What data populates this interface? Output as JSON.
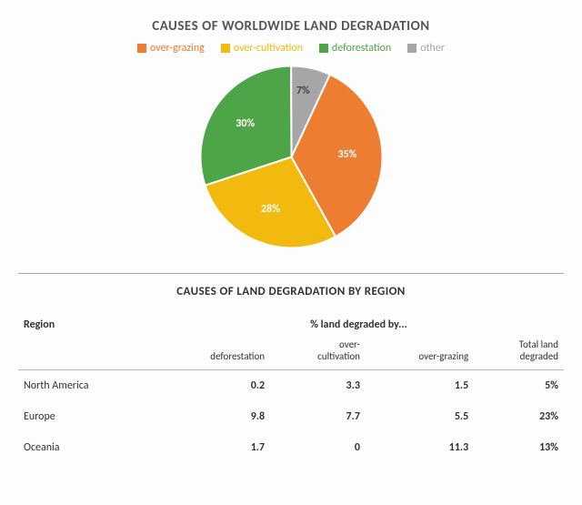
{
  "chart": {
    "title": "CAUSES OF WORLDWIDE LAND DEGRADATION",
    "type": "pie",
    "background_color": "#fdfdfd",
    "series": [
      {
        "key": "over-grazing",
        "label": "over-grazing",
        "color": "#ed7d31",
        "value": 35,
        "display": "35%"
      },
      {
        "key": "over-cultivation",
        "label": "over-cultivation",
        "color": "#f2b90f",
        "value": 28,
        "display": "28%"
      },
      {
        "key": "deforestation",
        "label": "deforestation",
        "color": "#4ea547",
        "value": 30,
        "display": "30%"
      },
      {
        "key": "other",
        "label": "other",
        "color": "#a6a6a6",
        "value": 7,
        "display": "7%"
      }
    ],
    "label_fontsize": 12,
    "label_color": "#ffffff",
    "start_angle_deg": -65
  },
  "table": {
    "title": "CAUSES OF LAND DEGRADATION BY REGION",
    "region_header": "Region",
    "group_header": "% land degraded by...",
    "columns": [
      {
        "key": "deforestation",
        "label": "deforestation"
      },
      {
        "key": "overcult",
        "label": "over-\ncultivation"
      },
      {
        "key": "overgraz",
        "label": "over-grazing"
      },
      {
        "key": "total",
        "label": "Total land\ndegraded"
      }
    ],
    "rows": [
      {
        "region": "North America",
        "deforestation": "0.2",
        "overcult": "3.3",
        "overgraz": "1.5",
        "total": "5%"
      },
      {
        "region": "Europe",
        "deforestation": "9.8",
        "overcult": "7.7",
        "overgraz": "5.5",
        "total": "23%"
      },
      {
        "region": "Oceania",
        "deforestation": "1.7",
        "overcult": "0",
        "overgraz": "11.3",
        "total": "13%"
      }
    ]
  }
}
